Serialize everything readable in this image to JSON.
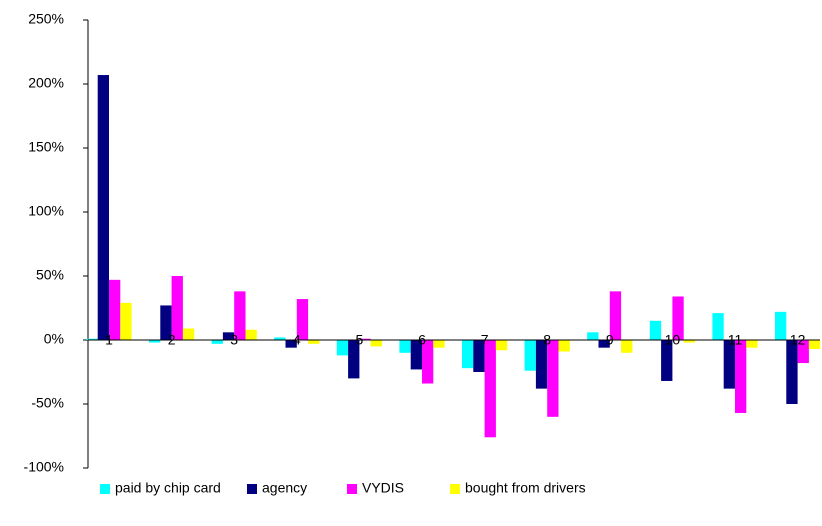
{
  "chart_data": {
    "type": "bar",
    "categories": [
      "1",
      "2",
      "3",
      "4",
      "5",
      "6",
      "7",
      "8",
      "9",
      "10",
      "11",
      "12"
    ],
    "series": [
      {
        "name": "paid by chip card",
        "color": "#00ffff",
        "values": [
          1,
          -2,
          -3,
          2,
          -12,
          -10,
          -22,
          -24,
          6,
          15,
          21,
          22
        ]
      },
      {
        "name": "agency",
        "color": "#000080",
        "values": [
          207,
          27,
          6,
          -6,
          -30,
          -23,
          -25,
          -38,
          -6,
          -32,
          -38,
          -50
        ]
      },
      {
        "name": "VYDIS",
        "color": "#ff00ff",
        "values": [
          47,
          50,
          38,
          32,
          1,
          -34,
          -76,
          -60,
          38,
          34,
          -57,
          -18
        ]
      },
      {
        "name": "bought from drivers",
        "color": "#ffff00",
        "values": [
          29,
          9,
          8,
          -3,
          -5,
          -6,
          -8,
          -9,
          -10,
          -2,
          -6,
          -7
        ]
      }
    ],
    "ylim": [
      -100,
      250
    ],
    "yticks": [
      {
        "value": -100,
        "label": "-100%"
      },
      {
        "value": -50,
        "label": "-50%"
      },
      {
        "value": 0,
        "label": "0%"
      },
      {
        "value": 50,
        "label": "50%"
      },
      {
        "value": 100,
        "label": "100%"
      },
      {
        "value": 150,
        "label": "150%"
      },
      {
        "value": 200,
        "label": "200%"
      },
      {
        "value": 250,
        "label": "250%"
      }
    ],
    "legend": "bottom"
  }
}
